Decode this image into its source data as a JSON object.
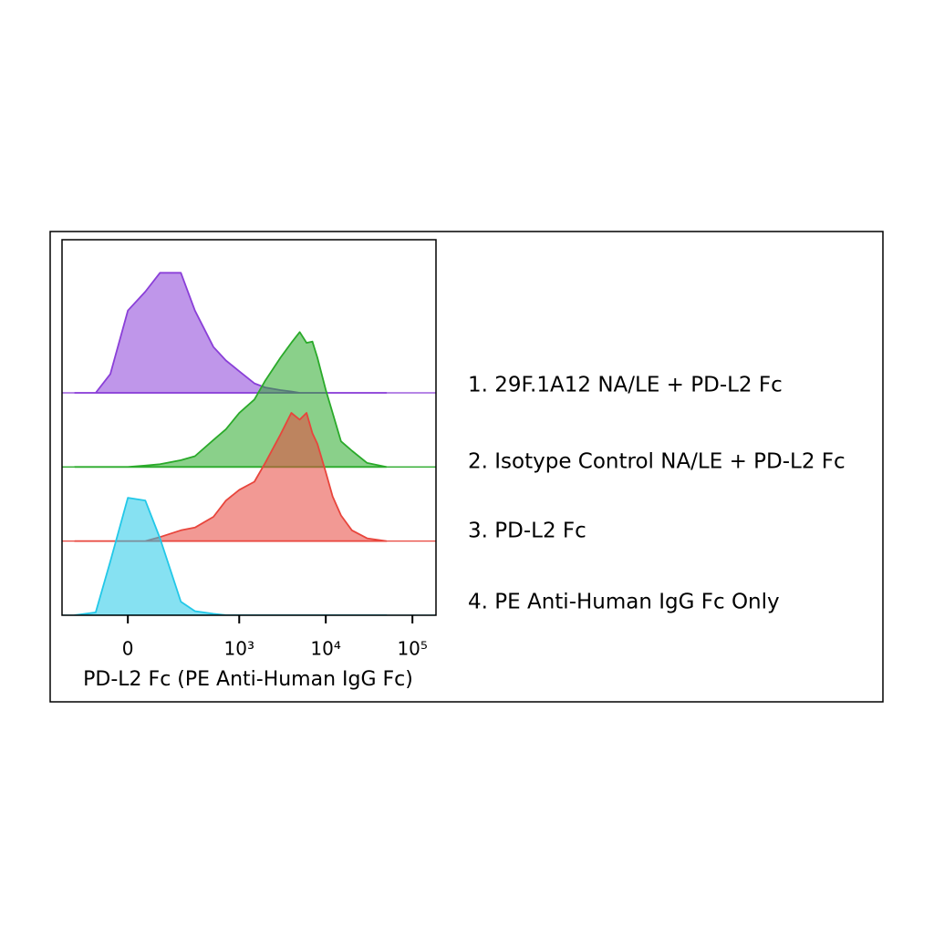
{
  "chart_data": {
    "type": "histogram-overlay",
    "x_label": "PD-L2 Fc (PE Anti-Human IgG Fc)",
    "xscale": "asinh",
    "xlim": [
      -290,
      187000
    ],
    "xticks": [
      0,
      {
        "value": 1000,
        "label": "10³"
      },
      {
        "value": 10000,
        "label": "10⁴"
      },
      {
        "value": 100000,
        "label": "10⁵"
      }
    ],
    "x": [
      -200,
      -100,
      -50,
      0,
      50,
      100,
      200,
      300,
      500,
      700,
      1000,
      1500,
      2000,
      3000,
      4000,
      5000,
      6000,
      7000,
      8000,
      10000,
      12000,
      15000,
      20000,
      30000,
      50000
    ],
    "series": [
      {
        "name": "1. 29F.1A12 NA/LE + PD-L2 Fc",
        "color": "#8a3fd8",
        "values": [
          0,
          0,
          14,
          61,
          75,
          89,
          89,
          61,
          34,
          24,
          16,
          7,
          4,
          2,
          1,
          0,
          0,
          0,
          0,
          0,
          0,
          0,
          0,
          0,
          0
        ]
      },
      {
        "name": "2. Isotype Control NA/LE + PD-L2 Fc",
        "color": "#2aaa2a",
        "values": [
          0,
          0,
          0,
          0,
          1,
          2,
          5,
          8,
          20,
          28,
          40,
          50,
          64,
          81,
          92,
          100,
          92,
          93,
          81,
          57,
          40,
          19,
          12,
          3,
          0
        ]
      },
      {
        "name": "3. PD-L2 Fc",
        "color": "#e8453c",
        "values": [
          0,
          0,
          0,
          0,
          0,
          3,
          8,
          10,
          18,
          30,
          38,
          44,
          58,
          79,
          95,
          90,
          95,
          80,
          72,
          51,
          33,
          19,
          8,
          2,
          0
        ]
      },
      {
        "name": "4. PE Anti-Human IgG Fc Only",
        "color": "#22c8e8",
        "values": [
          0,
          2,
          40,
          87,
          85,
          57,
          10,
          3,
          1,
          0,
          0,
          0,
          0,
          0,
          0,
          0,
          0,
          0,
          0,
          0,
          0,
          0,
          0,
          0,
          0
        ]
      }
    ]
  }
}
